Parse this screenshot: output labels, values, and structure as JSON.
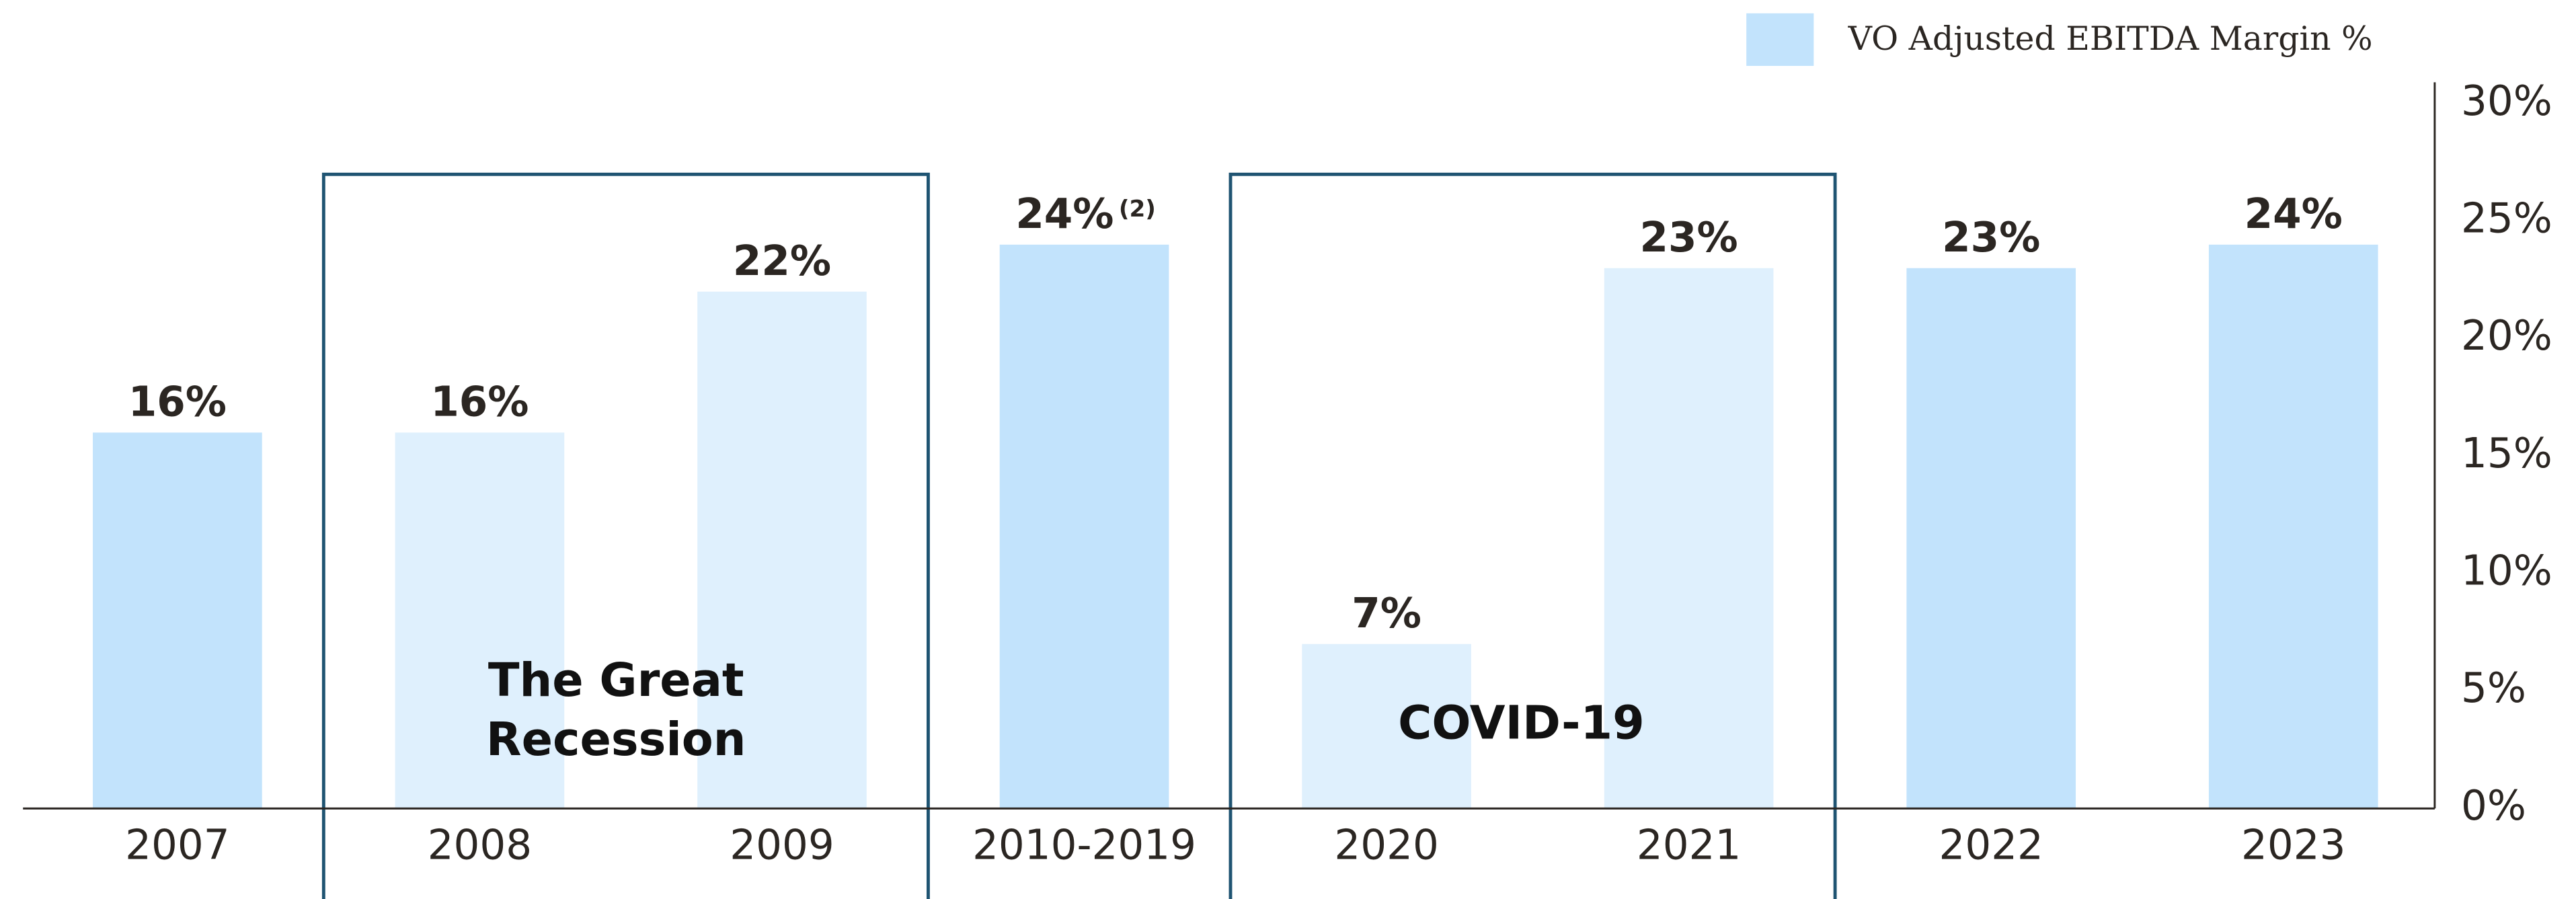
{
  "chart_data": {
    "type": "bar",
    "legend": "VO Adjusted EBITDA Margin %",
    "legend_color": "#c2e3fc",
    "categories": [
      "2007",
      "2008",
      "2009",
      "2010-2019",
      "2020",
      "2021",
      "2022",
      "2023"
    ],
    "values": [
      16,
      16,
      22,
      24,
      7,
      23,
      23,
      24
    ],
    "value_labels": [
      "16%",
      "16%",
      "22%",
      "24%",
      "7%",
      "23%",
      "23%",
      "24%"
    ],
    "value_label_notes": [
      null,
      null,
      null,
      "(2)",
      null,
      null,
      null,
      null
    ],
    "colors": [
      "#c2e3fc",
      "#dff0fd",
      "#dff0fd",
      "#c2e3fc",
      "#dff0fd",
      "#dff0fd",
      "#c2e3fc",
      "#c2e3fc"
    ],
    "ylim": [
      0,
      30
    ],
    "yticks": [
      {
        "value": 0,
        "label": "0%"
      },
      {
        "value": 5,
        "label": "5%"
      },
      {
        "value": 10,
        "label": "10%"
      },
      {
        "value": 15,
        "label": "15%"
      },
      {
        "value": 20,
        "label": "20%"
      },
      {
        "value": 25,
        "label": "25%"
      },
      {
        "value": 30,
        "label": "30%"
      }
    ],
    "annotations": [
      {
        "lines": [
          "The Great",
          "Recession"
        ]
      },
      {
        "lines": [
          "COVID-19"
        ]
      }
    ]
  }
}
